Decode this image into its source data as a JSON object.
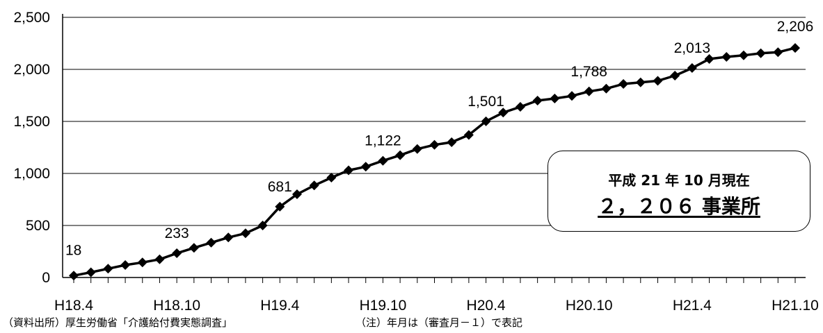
{
  "chart_data": {
    "type": "line",
    "title": "",
    "xlabel": "",
    "ylabel": "",
    "ylim": [
      0,
      2500
    ],
    "yticks": [
      "0",
      "500",
      "1,000",
      "1,500",
      "2,000",
      "2,500"
    ],
    "ytick_values": [
      0,
      500,
      1000,
      1500,
      2000,
      2500
    ],
    "xtick_labels": [
      "H18.4",
      "H18.10",
      "H19.4",
      "H19.10",
      "H20.4",
      "H20.10",
      "H21.4",
      "H21.10"
    ],
    "xtick_positions": [
      0,
      6,
      12,
      18,
      24,
      30,
      36,
      42
    ],
    "grid": "horizontal",
    "line_color": "#000000",
    "marker": "diamond",
    "series": [
      {
        "values": [
          18,
          50,
          85,
          120,
          145,
          175,
          233,
          285,
          335,
          385,
          425,
          500,
          681,
          800,
          885,
          960,
          1030,
          1065,
          1122,
          1175,
          1235,
          1275,
          1300,
          1370,
          1501,
          1585,
          1640,
          1700,
          1720,
          1745,
          1788,
          1815,
          1860,
          1875,
          1890,
          1940,
          2013,
          2100,
          2120,
          2135,
          2155,
          2165,
          2206
        ]
      }
    ],
    "data_labels": [
      {
        "index": 0,
        "text": "18"
      },
      {
        "index": 6,
        "text": "233"
      },
      {
        "index": 12,
        "text": "681"
      },
      {
        "index": 18,
        "text": "1,122"
      },
      {
        "index": 24,
        "text": "1,501"
      },
      {
        "index": 30,
        "text": "1,788"
      },
      {
        "index": 36,
        "text": "2,013"
      },
      {
        "index": 42,
        "text": "2,206"
      }
    ]
  },
  "callout": {
    "line1": "平成 21 年 10 月現在",
    "line2": "２，２０６ 事業所"
  },
  "footnotes": {
    "source": "（資料出所）厚生労働省「介護給付費実態調査」",
    "note": "（注）年月は（審査月－１）で表記"
  }
}
